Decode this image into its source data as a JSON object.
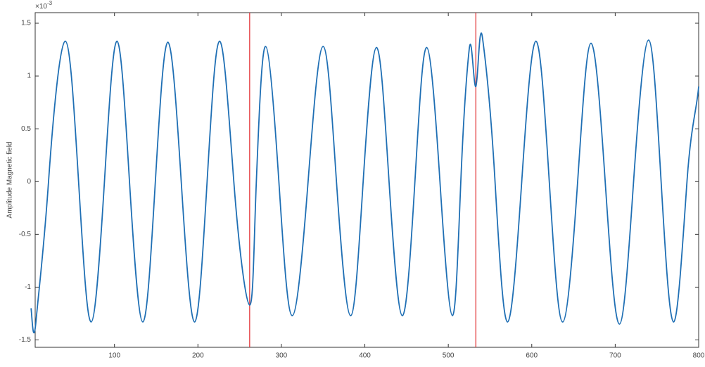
{
  "chart_data": {
    "type": "line",
    "ylabel": "Amplitude Magnetic field",
    "y_multiplier": "×10",
    "y_exponent": "-3",
    "x": [
      0,
      6,
      21,
      41,
      57,
      72,
      88,
      103,
      118,
      134,
      149,
      164,
      180,
      196,
      211,
      226,
      243,
      262,
      270,
      281,
      297,
      313,
      332,
      350,
      366,
      383,
      398,
      414,
      429,
      445,
      460,
      474,
      490,
      505,
      515,
      525,
      533,
      541,
      556,
      571,
      588,
      605,
      621,
      637,
      655,
      671,
      688,
      705,
      722,
      740,
      755,
      770,
      786,
      800
    ],
    "series": [
      {
        "color": "#1f6fb4",
        "values": [
          -1.2,
          -1.32,
          0,
          1.33,
          0,
          -1.33,
          0,
          1.33,
          0,
          -1.33,
          0,
          1.32,
          0,
          -1.33,
          0,
          1.33,
          0,
          -1.17,
          0,
          1.28,
          0,
          -1.27,
          0,
          1.28,
          0,
          -1.27,
          0,
          1.27,
          0,
          -1.27,
          0,
          1.27,
          0,
          -1.27,
          0,
          1.25,
          0.9,
          1.36,
          0,
          -1.33,
          0,
          1.33,
          0,
          -1.33,
          0,
          1.31,
          0,
          -1.35,
          0,
          1.34,
          0,
          -1.33,
          0,
          0.9
        ]
      }
    ],
    "vlines": {
      "x": [
        262,
        533
      ],
      "color": "#e0282c"
    },
    "xlim": [
      5,
      800
    ],
    "ylim": [
      -1.57,
      1.6
    ],
    "xticks": [
      100,
      200,
      300,
      400,
      500,
      600,
      700,
      800
    ],
    "yticks": [
      -1.5,
      -1,
      -0.5,
      0,
      0.5,
      1,
      1.5
    ],
    "grid": false
  }
}
